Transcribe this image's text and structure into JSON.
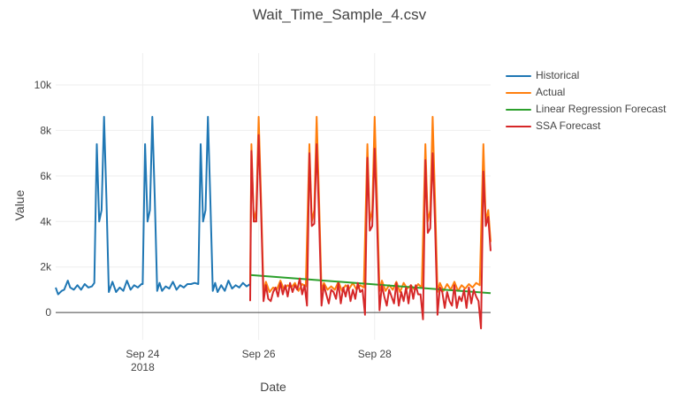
{
  "chart_data": {
    "type": "line",
    "title": "Wait_Time_Sample_4.csv",
    "xlabel": "Date",
    "ylabel": "Value",
    "xlim": [
      "2018-09-22 12:00",
      "2018-09-30 00:00"
    ],
    "ylim": [
      -1200,
      11400
    ],
    "grid": true,
    "legend_position": "top-right",
    "x_ticks": [
      {
        "x": "2018-09-24",
        "label": "Sep 24",
        "sublabel": "2018"
      },
      {
        "x": "2018-09-26",
        "label": "Sep 26",
        "sublabel": ""
      },
      {
        "x": "2018-09-28",
        "label": "Sep 28",
        "sublabel": ""
      }
    ],
    "y_ticks": [
      {
        "value": 0,
        "label": "0"
      },
      {
        "value": 2000,
        "label": "2k"
      },
      {
        "value": 4000,
        "label": "4k"
      },
      {
        "value": 6000,
        "label": "6k"
      },
      {
        "value": 8000,
        "label": "8k"
      },
      {
        "value": 10000,
        "label": "10k"
      }
    ],
    "series": [
      {
        "name": "Historical",
        "color": "#1f77b4",
        "x": [
          "2018-09-22 12:00",
          "2018-09-22 13:00",
          "2018-09-22 14:30",
          "2018-09-22 15:30",
          "2018-09-22 17:00",
          "2018-09-22 18:00",
          "2018-09-22 19:30",
          "2018-09-22 21:00",
          "2018-09-22 22:30",
          "2018-09-23 00:00",
          "2018-09-23 01:30",
          "2018-09-23 03:00",
          "2018-09-23 04:00",
          "2018-09-23 05:00",
          "2018-09-23 06:00",
          "2018-09-23 07:00",
          "2018-09-23 08:00",
          "2018-09-23 09:00",
          "2018-09-23 10:00",
          "2018-09-23 11:30",
          "2018-09-23 13:00",
          "2018-09-23 14:30",
          "2018-09-23 16:00",
          "2018-09-23 17:30",
          "2018-09-23 19:00",
          "2018-09-23 20:30",
          "2018-09-23 22:00",
          "2018-09-23 23:30",
          "2018-09-24 00:00",
          "2018-09-24 01:00",
          "2018-09-24 02:00",
          "2018-09-24 03:00",
          "2018-09-24 04:00",
          "2018-09-24 05:00",
          "2018-09-24 06:00",
          "2018-09-24 07:00",
          "2018-09-24 08:00",
          "2018-09-24 09:30",
          "2018-09-24 11:00",
          "2018-09-24 12:30",
          "2018-09-24 14:00",
          "2018-09-24 15:30",
          "2018-09-24 17:00",
          "2018-09-24 18:30",
          "2018-09-24 20:00",
          "2018-09-24 21:30",
          "2018-09-24 23:00",
          "2018-09-25 00:00",
          "2018-09-25 01:00",
          "2018-09-25 02:00",
          "2018-09-25 03:00",
          "2018-09-25 04:00",
          "2018-09-25 05:00",
          "2018-09-25 06:00",
          "2018-09-25 07:00",
          "2018-09-25 08:30",
          "2018-09-25 10:00",
          "2018-09-25 11:30",
          "2018-09-25 13:00",
          "2018-09-25 14:30",
          "2018-09-25 16:00",
          "2018-09-25 17:30",
          "2018-09-25 19:00",
          "2018-09-25 20:30"
        ],
        "y": [
          1100,
          800,
          950,
          1000,
          1400,
          1100,
          1000,
          1200,
          1000,
          1250,
          1100,
          1150,
          1300,
          7400,
          4000,
          4500,
          8600,
          5000,
          900,
          1350,
          900,
          1100,
          950,
          1400,
          1000,
          1200,
          1100,
          1250,
          1250,
          7400,
          4000,
          4500,
          8600,
          5000,
          950,
          1300,
          950,
          1150,
          1050,
          1350,
          1000,
          1200,
          1100,
          1250,
          1250,
          1300,
          1250,
          7400,
          4000,
          4500,
          8600,
          5000,
          950,
          1300,
          900,
          1200,
          950,
          1400,
          1050,
          1200,
          1100,
          1300,
          1150,
          1250
        ]
      },
      {
        "name": "Actual",
        "color": "#ff7f0e",
        "x": [
          "2018-09-25 20:30",
          "2018-09-25 21:00",
          "2018-09-25 22:00",
          "2018-09-25 23:00",
          "2018-09-26 00:00",
          "2018-09-26 01:00",
          "2018-09-26 02:00",
          "2018-09-26 03:00",
          "2018-09-26 04:30",
          "2018-09-26 06:00",
          "2018-09-26 07:30",
          "2018-09-26 09:00",
          "2018-09-26 10:30",
          "2018-09-26 12:00",
          "2018-09-26 13:30",
          "2018-09-26 15:00",
          "2018-09-26 16:30",
          "2018-09-26 18:00",
          "2018-09-26 19:30",
          "2018-09-26 21:00",
          "2018-09-26 22:00",
          "2018-09-26 23:00",
          "2018-09-27 00:00",
          "2018-09-27 01:00",
          "2018-09-27 02:00",
          "2018-09-27 03:00",
          "2018-09-27 04:30",
          "2018-09-27 06:00",
          "2018-09-27 07:30",
          "2018-09-27 09:00",
          "2018-09-27 10:30",
          "2018-09-27 12:00",
          "2018-09-27 13:30",
          "2018-09-27 15:00",
          "2018-09-27 16:30",
          "2018-09-27 18:00",
          "2018-09-27 19:30",
          "2018-09-27 21:00",
          "2018-09-27 22:00",
          "2018-09-27 23:00",
          "2018-09-28 00:00",
          "2018-09-28 01:00",
          "2018-09-28 02:00",
          "2018-09-28 03:00",
          "2018-09-28 04:30",
          "2018-09-28 06:00",
          "2018-09-28 07:30",
          "2018-09-28 09:00",
          "2018-09-28 10:30",
          "2018-09-28 12:00",
          "2018-09-28 13:30",
          "2018-09-28 15:00",
          "2018-09-28 16:30",
          "2018-09-28 18:00",
          "2018-09-28 19:30",
          "2018-09-28 21:00",
          "2018-09-28 22:00",
          "2018-09-28 23:00",
          "2018-09-29 00:00",
          "2018-09-29 01:00",
          "2018-09-29 02:00",
          "2018-09-29 03:00",
          "2018-09-29 04:30",
          "2018-09-29 06:00",
          "2018-09-29 07:30",
          "2018-09-29 09:00",
          "2018-09-29 10:30",
          "2018-09-29 12:00",
          "2018-09-29 13:30",
          "2018-09-29 15:00",
          "2018-09-29 16:30",
          "2018-09-29 18:00",
          "2018-09-29 19:30",
          "2018-09-29 21:00",
          "2018-09-29 22:00",
          "2018-09-29 23:00",
          "2018-09-30 00:00"
        ],
        "y": [
          1250,
          7400,
          4000,
          4500,
          8600,
          5000,
          900,
          1350,
          900,
          1100,
          1000,
          1400,
          1000,
          1200,
          1100,
          1300,
          950,
          1250,
          1150,
          7400,
          4000,
          4500,
          8600,
          5000,
          950,
          1300,
          1000,
          1150,
          1000,
          1350,
          950,
          1200,
          1050,
          1300,
          1000,
          1200,
          1100,
          7400,
          4000,
          4500,
          8600,
          5000,
          950,
          1400,
          950,
          1200,
          1000,
          1350,
          900,
          1300,
          1050,
          1200,
          1000,
          1250,
          1100,
          7400,
          4000,
          4500,
          8600,
          5000,
          900,
          1300,
          950,
          1250,
          1000,
          1350,
          950,
          1200,
          1050,
          1250,
          1100,
          1300,
          1200,
          7400,
          4000,
          4500,
          3100
        ]
      },
      {
        "name": "Linear Regression Forecast",
        "color": "#2ca02c",
        "x": [
          "2018-09-25 20:30",
          "2018-09-30 00:00"
        ],
        "y": [
          1650,
          850
        ]
      },
      {
        "name": "SSA Forecast",
        "color": "#d62728",
        "x": [
          "2018-09-25 20:30",
          "2018-09-25 21:00",
          "2018-09-25 22:00",
          "2018-09-25 23:00",
          "2018-09-26 00:00",
          "2018-09-26 01:00",
          "2018-09-26 02:00",
          "2018-09-26 03:00",
          "2018-09-26 04:00",
          "2018-09-26 05:00",
          "2018-09-26 06:00",
          "2018-09-26 07:00",
          "2018-09-26 08:00",
          "2018-09-26 09:00",
          "2018-09-26 10:00",
          "2018-09-26 11:00",
          "2018-09-26 12:00",
          "2018-09-26 13:00",
          "2018-09-26 14:00",
          "2018-09-26 15:00",
          "2018-09-26 16:00",
          "2018-09-26 17:00",
          "2018-09-26 18:00",
          "2018-09-26 19:00",
          "2018-09-26 20:00",
          "2018-09-26 21:00",
          "2018-09-26 22:00",
          "2018-09-26 23:00",
          "2018-09-27 00:00",
          "2018-09-27 01:00",
          "2018-09-27 02:00",
          "2018-09-27 03:00",
          "2018-09-27 04:00",
          "2018-09-27 05:00",
          "2018-09-27 06:00",
          "2018-09-27 07:00",
          "2018-09-27 08:00",
          "2018-09-27 09:00",
          "2018-09-27 10:00",
          "2018-09-27 11:00",
          "2018-09-27 12:00",
          "2018-09-27 13:00",
          "2018-09-27 14:00",
          "2018-09-27 15:00",
          "2018-09-27 16:00",
          "2018-09-27 17:00",
          "2018-09-27 18:00",
          "2018-09-27 19:00",
          "2018-09-27 20:00",
          "2018-09-27 21:00",
          "2018-09-27 22:00",
          "2018-09-27 23:00",
          "2018-09-28 00:00",
          "2018-09-28 01:00",
          "2018-09-28 02:00",
          "2018-09-28 03:00",
          "2018-09-28 04:00",
          "2018-09-28 05:00",
          "2018-09-28 06:00",
          "2018-09-28 07:00",
          "2018-09-28 08:00",
          "2018-09-28 09:00",
          "2018-09-28 10:00",
          "2018-09-28 11:00",
          "2018-09-28 12:00",
          "2018-09-28 13:00",
          "2018-09-28 14:00",
          "2018-09-28 15:00",
          "2018-09-28 16:00",
          "2018-09-28 17:00",
          "2018-09-28 18:00",
          "2018-09-28 19:00",
          "2018-09-28 20:00",
          "2018-09-28 21:00",
          "2018-09-28 22:00",
          "2018-09-28 23:00",
          "2018-09-29 00:00",
          "2018-09-29 01:00",
          "2018-09-29 02:00",
          "2018-09-29 03:00",
          "2018-09-29 04:00",
          "2018-09-29 05:00",
          "2018-09-29 06:00",
          "2018-09-29 07:00",
          "2018-09-29 08:00",
          "2018-09-29 09:00",
          "2018-09-29 10:00",
          "2018-09-29 11:00",
          "2018-09-29 12:00",
          "2018-09-29 13:00",
          "2018-09-29 14:00",
          "2018-09-29 15:00",
          "2018-09-29 16:00",
          "2018-09-29 17:00",
          "2018-09-29 18:00",
          "2018-09-29 19:00",
          "2018-09-29 20:00",
          "2018-09-29 21:00",
          "2018-09-29 22:00",
          "2018-09-29 23:00",
          "2018-09-30 00:00"
        ],
        "y": [
          500,
          7100,
          4000,
          4000,
          7800,
          4500,
          500,
          1200,
          600,
          500,
          900,
          1100,
          700,
          1300,
          800,
          1200,
          700,
          1300,
          900,
          1200,
          1000,
          1500,
          800,
          1200,
          300,
          7000,
          3800,
          3900,
          7400,
          4200,
          300,
          1200,
          800,
          400,
          1000,
          900,
          600,
          1300,
          400,
          1100,
          700,
          1200,
          500,
          1000,
          600,
          1300,
          900,
          1000,
          -100,
          6800,
          3600,
          3800,
          7200,
          4000,
          100,
          1200,
          700,
          300,
          1000,
          700,
          400,
          1300,
          300,
          900,
          500,
          1100,
          400,
          1200,
          600,
          1200,
          800,
          800,
          -300,
          6700,
          3500,
          3700,
          7000,
          3900,
          -100,
          1100,
          900,
          200,
          900,
          500,
          300,
          1200,
          200,
          700,
          500,
          1000,
          200,
          1100,
          400,
          1000,
          700,
          500,
          -700,
          6200,
          3800,
          4200,
          2700
        ]
      }
    ]
  }
}
